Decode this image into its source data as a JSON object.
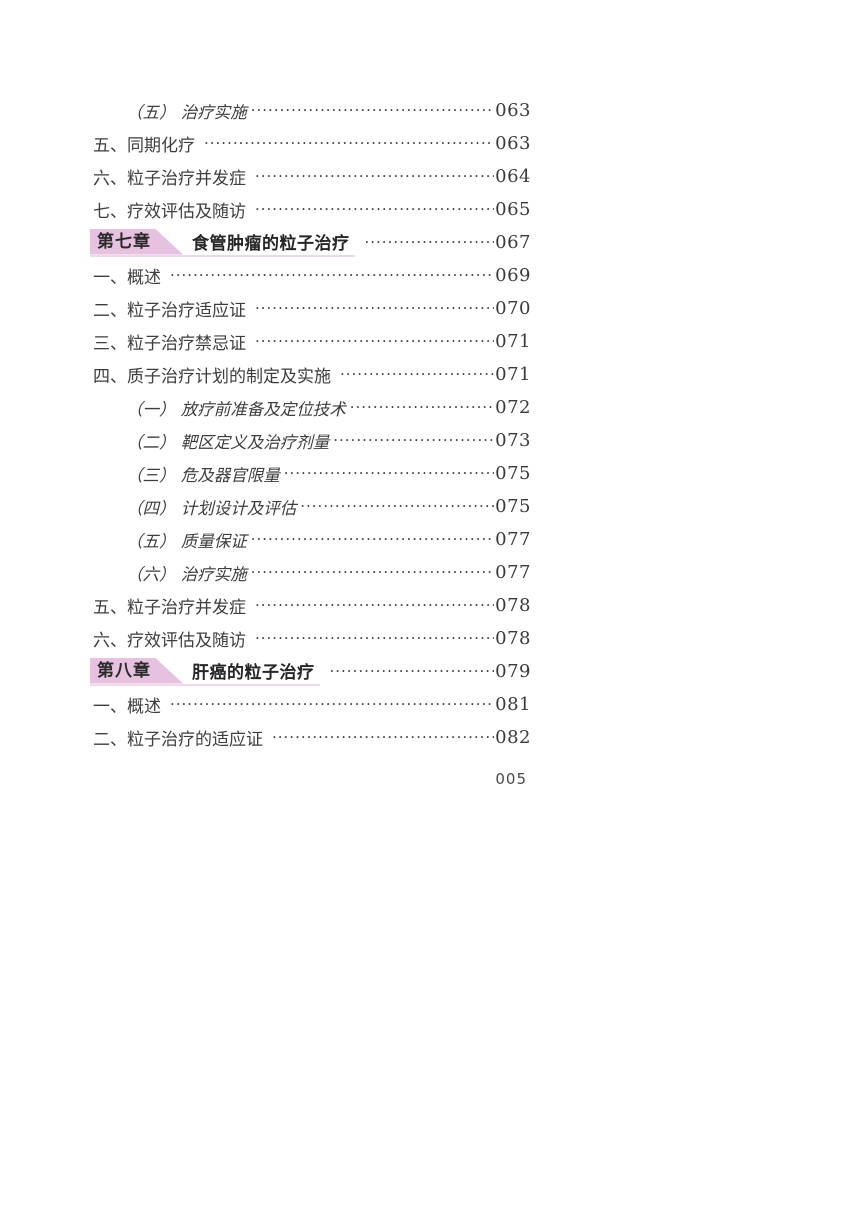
{
  "page": {
    "footer_page_number": "005"
  },
  "colors": {
    "badge_pink": "#e6c1e0",
    "underline_pink": "#f0d7ec",
    "body_text": "#3d3d3d",
    "chapter_text": "#262626"
  },
  "toc": {
    "entries": [
      {
        "type": "sub",
        "label": "（五） 治疗实施",
        "page": "063"
      },
      {
        "type": "item",
        "label": "五、同期化疗",
        "page": "063"
      },
      {
        "type": "item",
        "label": "六、粒子治疗并发症",
        "page": "064"
      },
      {
        "type": "item",
        "label": "七、疗效评估及随访",
        "page": "065"
      },
      {
        "type": "chapter",
        "badge": "第七章",
        "label": "食管肿瘤的粒子治疗",
        "page": "067"
      },
      {
        "type": "item",
        "label": "一、概述",
        "page": "069"
      },
      {
        "type": "item",
        "label": "二、粒子治疗适应证",
        "page": "070"
      },
      {
        "type": "item",
        "label": "三、粒子治疗禁忌证",
        "page": "071"
      },
      {
        "type": "item",
        "label": "四、质子治疗计划的制定及实施",
        "page": "071"
      },
      {
        "type": "sub",
        "label": "（一） 放疗前准备及定位技术",
        "page": "072"
      },
      {
        "type": "sub",
        "label": "（二） 靶区定义及治疗剂量",
        "page": "073"
      },
      {
        "type": "sub",
        "label": "（三） 危及器官限量",
        "page": "075"
      },
      {
        "type": "sub",
        "label": "（四） 计划设计及评估",
        "page": "075"
      },
      {
        "type": "sub",
        "label": "（五） 质量保证",
        "page": "077"
      },
      {
        "type": "sub",
        "label": "（六） 治疗实施",
        "page": "077"
      },
      {
        "type": "item",
        "label": "五、粒子治疗并发症",
        "page": "078"
      },
      {
        "type": "item",
        "label": "六、疗效评估及随访",
        "page": "078"
      },
      {
        "type": "chapter",
        "badge": "第八章",
        "label": "肝癌的粒子治疗",
        "page": "079"
      },
      {
        "type": "item",
        "label": "一、概述",
        "page": "081"
      },
      {
        "type": "item",
        "label": "二、粒子治疗的适应证",
        "page": "082"
      }
    ]
  }
}
